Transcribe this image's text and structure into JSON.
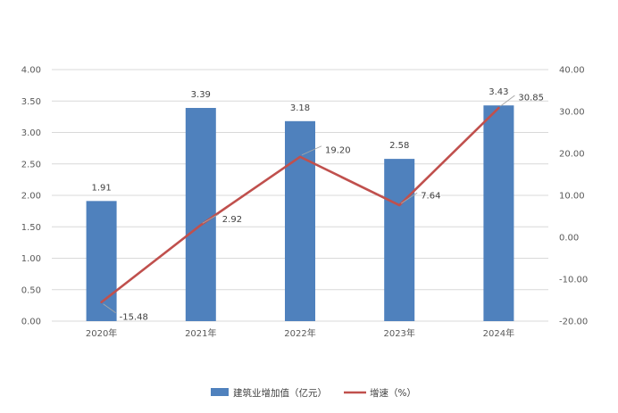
{
  "chart_data": {
    "type": "bar",
    "categories": [
      "2020年",
      "2021年",
      "2022年",
      "2023年",
      "2024年"
    ],
    "series": [
      {
        "name": "建筑业增加值（亿元）",
        "type": "bar",
        "axis": "left",
        "color": "#4F81BD",
        "values": [
          1.91,
          3.39,
          3.18,
          2.58,
          3.43
        ]
      },
      {
        "name": "增速（%）",
        "type": "line",
        "axis": "right",
        "color": "#C0504D",
        "values": [
          -15.48,
          2.92,
          19.2,
          7.64,
          30.85
        ]
      }
    ],
    "bar_labels": [
      "1.91",
      "3.39",
      "3.18",
      "2.58",
      "3.43"
    ],
    "line_labels": [
      "-15.48",
      "2.92",
      "19.20",
      "7.64",
      "30.85"
    ],
    "y_left": {
      "lim": [
        0,
        4
      ],
      "ticks": [
        "0.00",
        "0.50",
        "1.00",
        "1.50",
        "2.00",
        "2.50",
        "3.00",
        "3.50",
        "4.00"
      ]
    },
    "y_right": {
      "lim": [
        -20,
        40
      ],
      "ticks": [
        "-20.00",
        "-10.00",
        "0.00",
        "10.00",
        "20.00",
        "30.00",
        "40.00"
      ]
    },
    "grid": true,
    "legend": "bottom"
  }
}
